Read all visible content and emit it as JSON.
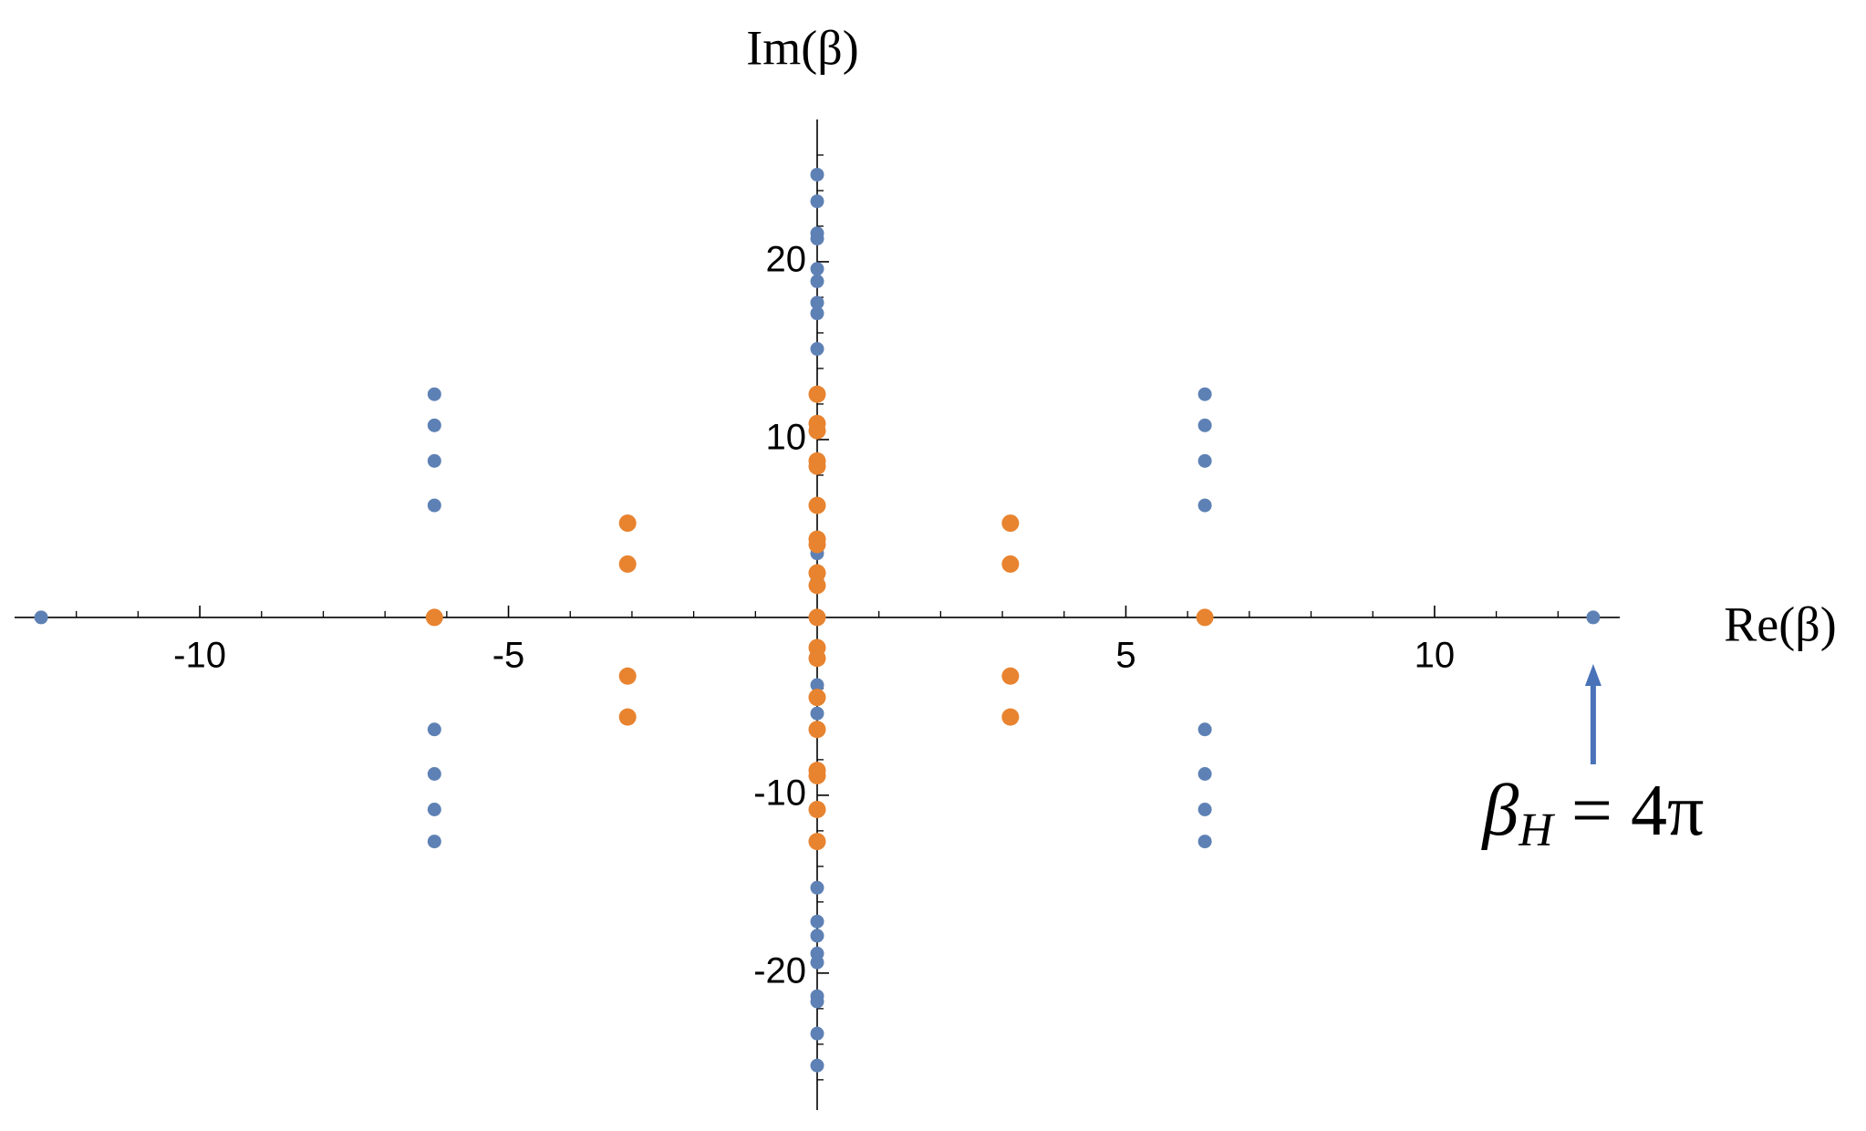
{
  "chart_data": {
    "type": "scatter",
    "xlabel": "Re(β)",
    "ylabel": "Im(β)",
    "xlim": [
      -13,
      13
    ],
    "ylim": [
      -27.7,
      28
    ],
    "xticks": [
      -10,
      -5,
      5,
      10
    ],
    "yticks": [
      -20,
      -10,
      10,
      20
    ],
    "x_minor_ticks": [
      -12,
      -11,
      -9,
      -8,
      -7,
      -6,
      -4,
      -3,
      -2,
      -1,
      1,
      2,
      3,
      4,
      6,
      7,
      8,
      9,
      11,
      12
    ],
    "y_minor_ticks": [
      -26,
      -24,
      -22,
      -18,
      -16,
      -14,
      -12,
      -8,
      -6,
      -4,
      -2,
      2,
      4,
      6,
      8,
      12,
      14,
      16,
      18,
      22,
      24,
      26
    ],
    "series": [
      {
        "color": "#5e81b5",
        "x": [
          -12.57,
          12.57,
          -6.2,
          -6.2,
          -6.2,
          -6.2,
          -6.2,
          -6.2,
          -6.2,
          -6.2,
          6.28,
          6.28,
          6.28,
          6.28,
          6.28,
          6.28,
          6.28,
          6.28,
          0,
          0,
          0,
          0,
          0,
          0,
          0,
          0,
          0,
          0,
          0,
          0,
          0,
          0,
          0,
          0,
          0,
          0,
          0,
          0,
          0,
          0,
          0,
          0,
          0
        ],
        "values": [
          0,
          0,
          12.55,
          10.8,
          8.8,
          6.3,
          -6.3,
          -8.8,
          -10.8,
          -12.6,
          12.55,
          10.8,
          8.8,
          6.3,
          -6.3,
          -8.8,
          -10.8,
          -12.6,
          24.9,
          23.4,
          21.6,
          21.3,
          19.6,
          18.9,
          17.7,
          17.1,
          15.1,
          4.4,
          3.6,
          2.6,
          2.1,
          -3.8,
          -5.4,
          -15.2,
          -17.1,
          -17.9,
          -18.9,
          -19.4,
          -21.3,
          -21.6,
          -23.4,
          -25.2,
          -1.6
        ]
      },
      {
        "color": "#e8832f",
        "x": [
          -6.2,
          6.28,
          -3.07,
          -3.07,
          -3.07,
          -3.07,
          3.13,
          3.13,
          3.13,
          3.13,
          0,
          0,
          0,
          0,
          0,
          0,
          0,
          0,
          0,
          0,
          0,
          0,
          0,
          0,
          0,
          0,
          0,
          0,
          0
        ],
        "values": [
          0,
          0,
          5.3,
          3.0,
          -3.3,
          -5.6,
          5.3,
          3.0,
          -3.3,
          -5.6,
          12.55,
          10.9,
          10.5,
          8.8,
          8.5,
          6.3,
          4.4,
          4.1,
          2.5,
          1.8,
          0,
          -1.7,
          -2.3,
          -4.5,
          -6.3,
          -8.6,
          -8.9,
          -10.8,
          -12.6
        ]
      }
    ],
    "annotation": {
      "base": "β",
      "sub": "H",
      "rest": " = 4π",
      "x": 12.57,
      "arrow_color": "#4a72b8"
    }
  }
}
